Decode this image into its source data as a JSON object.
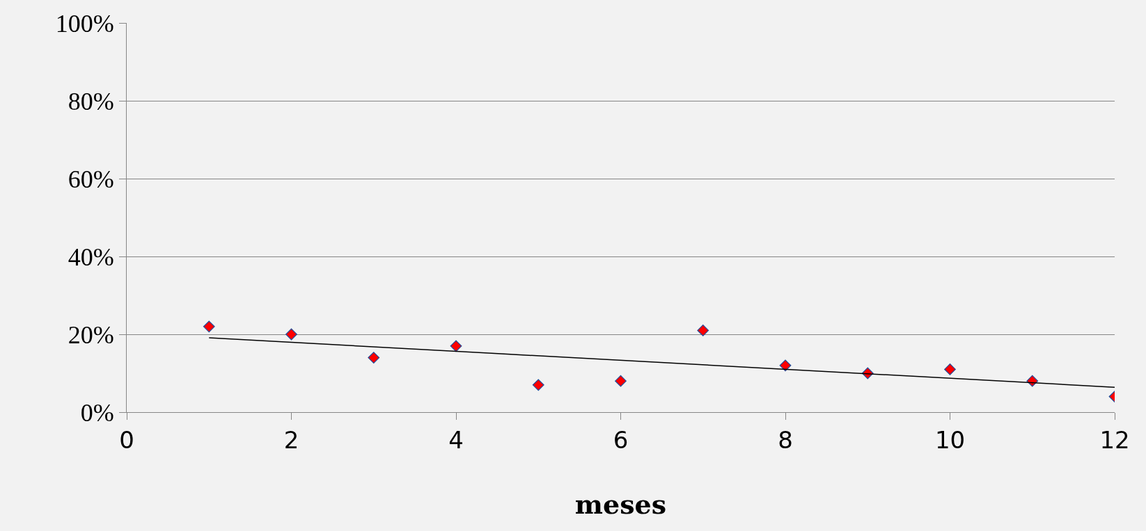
{
  "chart_data": {
    "type": "scatter",
    "xlabel": "meses",
    "x": [
      1,
      2,
      3,
      4,
      5,
      6,
      7,
      8,
      9,
      10,
      11,
      12
    ],
    "series": [
      {
        "color": "#ff0000",
        "values": [
          22,
          20,
          14,
          17,
          7,
          8,
          21,
          12,
          10,
          11,
          8,
          4
        ]
      },
      {
        "type": "line",
        "marker": "none",
        "color": "#000000",
        "x": [
          1,
          12
        ],
        "values": [
          19.1,
          6.4
        ]
      }
    ],
    "xlim": [
      0,
      12
    ],
    "xticks": [
      0,
      2,
      4,
      6,
      8,
      10,
      12
    ],
    "ylim": [
      0,
      100
    ],
    "yticks": [
      {
        "value": 0,
        "label": "0%"
      },
      {
        "value": 20,
        "label": "20%"
      },
      {
        "value": 40,
        "label": "40%"
      },
      {
        "value": 60,
        "label": "60%"
      },
      {
        "value": 80,
        "label": "80%"
      },
      {
        "value": 100,
        "label": "100%"
      }
    ],
    "grid": "y",
    "legend": false,
    "marker": "diamond",
    "line_style": "solid"
  }
}
